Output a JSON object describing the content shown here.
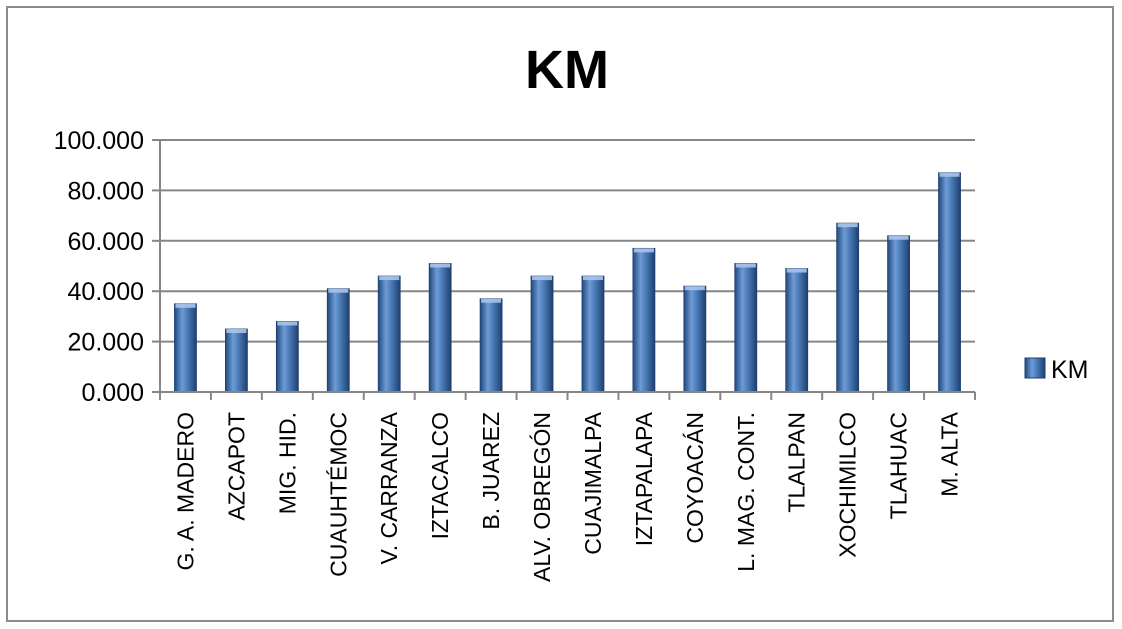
{
  "chart_data": {
    "type": "bar",
    "title": "KM",
    "categories": [
      "G. A. MADERO",
      "AZCAPOT",
      "MIG. HID.",
      "CUAUHTÉMOC",
      "V. CARRANZA",
      "IZTACALCO",
      "B. JUAREZ",
      "ALV. OBREGÓN",
      "CUAJIMALPA",
      "IZTAPALAPA",
      "COYOACÁN",
      "L. MAG. CONT.",
      "TLALPAN",
      "XOCHIMILCO",
      "TLAHUAC",
      "M. ALTA"
    ],
    "series": [
      {
        "name": "KM",
        "values": [
          35,
          25,
          28,
          41,
          46,
          51,
          37,
          46,
          46,
          57,
          42,
          51,
          49,
          67,
          62,
          87
        ]
      }
    ],
    "ylim": [
      0,
      100
    ],
    "yticks": [
      0,
      20,
      40,
      60,
      80,
      100
    ],
    "ytick_labels": [
      "0.000",
      "20.000",
      "40.000",
      "60.000",
      "80.000",
      "100.000"
    ],
    "grid": true,
    "legend": {
      "position": "right",
      "label": "KM"
    },
    "colors": {
      "bar_light": "#8fb2e3",
      "bar_mid": "#4f81bd",
      "bar_dark": "#1f497d",
      "grid": "#868686"
    }
  }
}
